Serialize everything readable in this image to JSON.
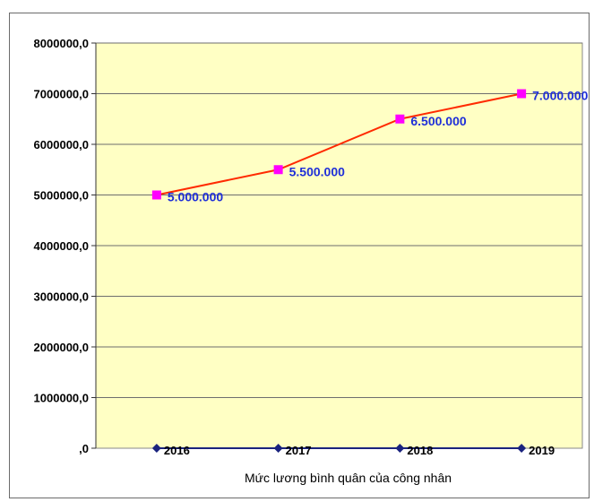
{
  "chart_data": {
    "type": "line",
    "title": "",
    "xlabel": "Mức lương bình quân của công nhân",
    "ylabel": "",
    "categories": [
      "2016",
      "2017",
      "2018",
      "2019"
    ],
    "ylim": [
      0,
      8000000
    ],
    "yticks": [
      {
        "value": 0,
        "label": ",0"
      },
      {
        "value": 1000000,
        "label": "1000000,0"
      },
      {
        "value": 2000000,
        "label": "2000000,0"
      },
      {
        "value": 3000000,
        "label": "3000000,0"
      },
      {
        "value": 4000000,
        "label": "4000000,0"
      },
      {
        "value": 5000000,
        "label": "5000000,0"
      },
      {
        "value": 6000000,
        "label": "6000000,0"
      },
      {
        "value": 7000000,
        "label": "7000000,0"
      },
      {
        "value": 8000000,
        "label": "8000000,0"
      }
    ],
    "series": [
      {
        "values": [
          5000000,
          5500000,
          6500000,
          7000000
        ],
        "data_labels": [
          "5.000.000",
          "5.500.000",
          "6.500.000",
          "7.000.000"
        ],
        "line_color": "#ff2a00",
        "marker_color": "#ff00ff",
        "marker": "square"
      },
      {
        "values": [
          0,
          0,
          0,
          0
        ],
        "line_color": "#1a237e",
        "marker_color": "#1a237e",
        "marker": "diamond"
      }
    ],
    "grid": true,
    "legend": "none",
    "plot_background": "#ffffc4"
  }
}
